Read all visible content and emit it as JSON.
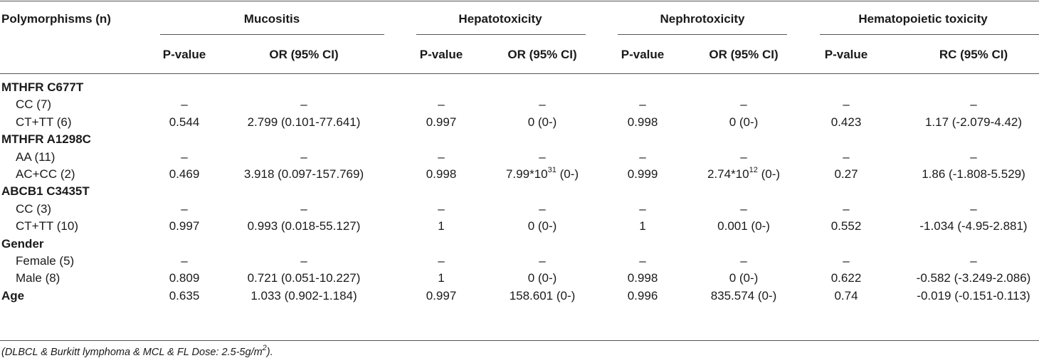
{
  "header": {
    "row_label": "Polymorphisms (n)",
    "groups": [
      "Mucositis",
      "Hepatotoxicity",
      "Nephrotoxicity",
      "Hematopoietic toxicity"
    ],
    "sub_headers": [
      "P-value",
      "OR (95% CI)",
      "P-value",
      "OR (95% CI)",
      "P-value",
      "OR (95% CI)",
      "P-value",
      "RC (95% CI)"
    ]
  },
  "rows": [
    {
      "label": "MTHFR C677T",
      "section": true
    },
    {
      "label": "CC (7)",
      "values": [
        "–",
        "–",
        "–",
        "–",
        "–",
        "–",
        "–",
        "–"
      ]
    },
    {
      "label": "CT+TT (6)",
      "values": [
        "0.544",
        "2.799 (0.101-77.641)",
        "0.997",
        "0 (0-)",
        "0.998",
        "0 (0-)",
        "0.423",
        "1.17 (-2.079-4.42)"
      ]
    },
    {
      "label": "MTHFR A1298C",
      "section": true
    },
    {
      "label": "AA (11)",
      "values": [
        "–",
        "–",
        "–",
        "–",
        "–",
        "–",
        "–",
        "–"
      ]
    },
    {
      "label": "AC+CC (2)",
      "values": [
        "0.469",
        "3.918 (0.097-157.769)",
        "0.998",
        "",
        "0.999",
        "",
        "0.27",
        "1.86 (-1.808-5.529)"
      ]
    },
    {
      "label": "ABCB1 C3435T",
      "section": true
    },
    {
      "label": "CC (3)",
      "values": [
        "–",
        "–",
        "–",
        "–",
        "–",
        "–",
        "–",
        "–"
      ]
    },
    {
      "label": "CT+TT (10)",
      "values": [
        "0.997",
        "0.993 (0.018-55.127)",
        "1",
        "0 (0-)",
        "1",
        "0.001 (0-)",
        "0.552",
        "-1.034 (-4.95-2.881)"
      ]
    },
    {
      "label": "Gender",
      "section": true
    },
    {
      "label": "Female (5)",
      "values": [
        "–",
        "–",
        "–",
        "–",
        "–",
        "–",
        "–",
        "–"
      ]
    },
    {
      "label": "Male (8)",
      "values": [
        "0.809",
        "0.721 (0.051-10.227)",
        "1",
        "0 (0-)",
        "0.998",
        "0 (0-)",
        "0.622",
        "-0.582 (-3.249-2.086)"
      ]
    },
    {
      "label": "Age",
      "section": true,
      "values": [
        "0.635",
        "1.033 (0.902-1.184)",
        "0.997",
        "158.601 (0-)",
        "0.996",
        "835.574 (0-)",
        "0.74",
        "-0.019 (-0.151-0.113)"
      ]
    }
  ],
  "special_cells": {
    "hepato_ac_cc": {
      "base": "7.99*10",
      "exp": "31",
      "tail": " (0-)"
    },
    "nephro_ac_cc": {
      "base": "2.74*10",
      "exp": "12",
      "tail": " (0-)"
    }
  },
  "footnote": {
    "text": "(DLBCL & Burkitt lymphoma & MCL & FL Dose: 2.5-5g/m",
    "sup": "2",
    "end": ")."
  }
}
